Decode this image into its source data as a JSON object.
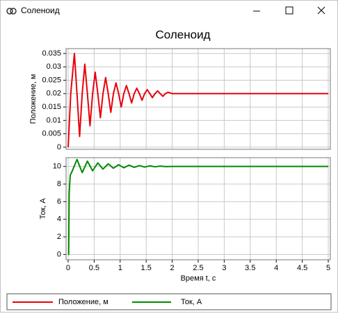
{
  "window": {
    "title": "Соленоид"
  },
  "chart_data": [
    {
      "type": "line",
      "title": "Соленоид",
      "ylabel": "Положение, м",
      "x": [
        0,
        0.05,
        0.12,
        0.17,
        0.22,
        0.27,
        0.32,
        0.37,
        0.42,
        0.47,
        0.52,
        0.57,
        0.62,
        0.67,
        0.72,
        0.77,
        0.82,
        0.87,
        0.92,
        0.97,
        1.02,
        1.07,
        1.12,
        1.17,
        1.22,
        1.27,
        1.32,
        1.37,
        1.42,
        1.47,
        1.52,
        1.57,
        1.62,
        1.67,
        1.72,
        1.77,
        1.82,
        1.87,
        1.92,
        2,
        5
      ],
      "series": [
        {
          "name": "Положение, м",
          "color": "#e8000b",
          "values": [
            0,
            0.02,
            0.035,
            0.02,
            0.004,
            0.02,
            0.031,
            0.02,
            0.008,
            0.02,
            0.028,
            0.02,
            0.011,
            0.02,
            0.026,
            0.02,
            0.013,
            0.02,
            0.024,
            0.02,
            0.015,
            0.02,
            0.023,
            0.02,
            0.0165,
            0.02,
            0.022,
            0.02,
            0.0175,
            0.02,
            0.0215,
            0.02,
            0.0185,
            0.02,
            0.021,
            0.02,
            0.019,
            0.02,
            0.0205,
            0.02,
            0.02
          ]
        }
      ],
      "xlim": [
        -0.04,
        5.04
      ],
      "xticks": [
        0,
        0.5,
        1,
        1.5,
        2,
        2.5,
        3,
        3.5,
        4,
        4.5,
        5
      ],
      "ylim": [
        -0.0008,
        0.0368
      ],
      "yticks": [
        0,
        0.005,
        0.01,
        0.015,
        0.02,
        0.025,
        0.03,
        0.035
      ],
      "grid": true
    },
    {
      "type": "line",
      "ylabel": "Ток, А",
      "xlabel": "Время t, с",
      "x": [
        0,
        0.01,
        0.02,
        0.04,
        0.08,
        0.17,
        0.27,
        0.37,
        0.47,
        0.57,
        0.67,
        0.77,
        0.87,
        0.97,
        1.07,
        1.17,
        1.27,
        1.37,
        1.47,
        1.57,
        1.67,
        1.77,
        1.87,
        2,
        5
      ],
      "series": [
        {
          "name": "Ток, А",
          "color": "#008a00",
          "values": [
            0,
            0,
            7,
            9,
            9.5,
            10.8,
            9.3,
            10.6,
            9.5,
            10.4,
            9.7,
            10.3,
            9.8,
            10.2,
            9.85,
            10.15,
            9.9,
            10.1,
            9.93,
            10.07,
            9.96,
            10.04,
            9.98,
            10,
            10
          ]
        }
      ],
      "xlim": [
        -0.04,
        5.04
      ],
      "xticks": [
        0,
        0.5,
        1,
        1.5,
        2,
        2.5,
        3,
        3.5,
        4,
        4.5,
        5
      ],
      "ylim": [
        -0.6,
        11
      ],
      "yticks": [
        0,
        2,
        4,
        6,
        8,
        10
      ],
      "grid": true
    }
  ]
}
